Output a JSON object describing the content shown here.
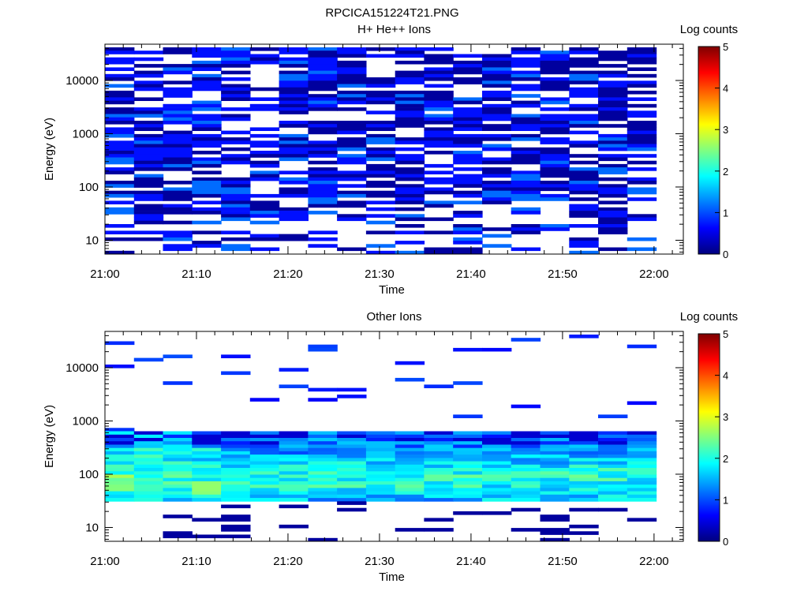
{
  "title": "RPCICA151224T21.PNG",
  "chart_data": [
    {
      "type": "heatmap",
      "title": "H+ He++ Ions",
      "xlabel": "Time",
      "ylabel": "Energy (eV)",
      "x_ticks": [
        "21:00",
        "21:10",
        "21:20",
        "21:30",
        "21:40",
        "21:50",
        "22:00"
      ],
      "y_ticks": [
        "10",
        "100",
        "1000",
        "10000"
      ],
      "yscale": "log",
      "ylim": [
        5.5,
        48000
      ],
      "colorbar": {
        "label": "Log counts",
        "ticks": [
          "0",
          "1",
          "2",
          "3",
          "4",
          "5"
        ],
        "range": [
          0,
          5
        ]
      },
      "pattern": "dense"
    },
    {
      "type": "heatmap",
      "title": "Other Ions",
      "xlabel": "Time",
      "ylabel": "Energy (eV)",
      "x_ticks": [
        "21:00",
        "21:10",
        "21:20",
        "21:30",
        "21:40",
        "21:50",
        "22:00"
      ],
      "y_ticks": [
        "10",
        "100",
        "1000",
        "10000"
      ],
      "yscale": "log",
      "ylim": [
        5.5,
        48000
      ],
      "colorbar": {
        "label": "Log counts",
        "ticks": [
          "0",
          "1",
          "2",
          "3",
          "4",
          "5"
        ],
        "range": [
          0,
          5
        ]
      },
      "pattern": "band"
    }
  ]
}
